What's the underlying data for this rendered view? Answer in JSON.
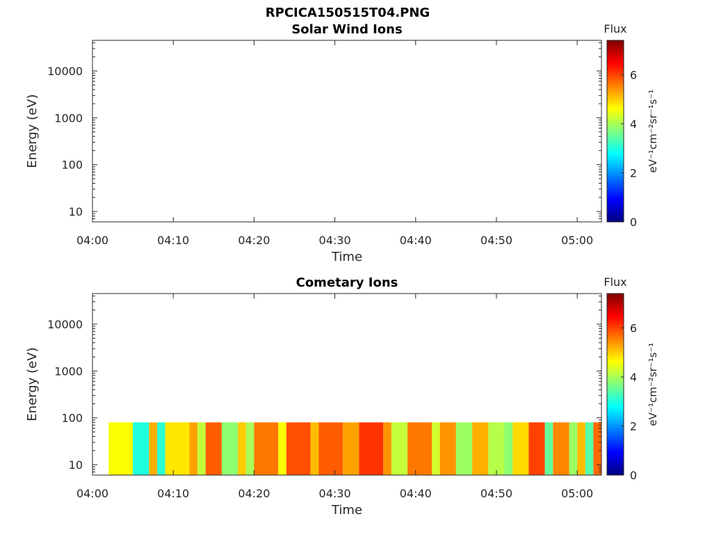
{
  "figure": {
    "title": "RPCICA150515T04.PNG"
  },
  "colormap": [
    "#00007f",
    "#0000ff",
    "#007fff",
    "#00ffff",
    "#7fff7f",
    "#ffff00",
    "#ff7f00",
    "#ff0000",
    "#7f0000"
  ],
  "chart_data": [
    {
      "type": "heatmap",
      "title": "Solar Wind Ions",
      "xlabel": "Time",
      "ylabel": "Energy (eV)",
      "x_range": [
        "04:00",
        "05:03"
      ],
      "x_ticks": [
        "04:00",
        "04:10",
        "04:20",
        "04:30",
        "04:40",
        "04:50",
        "05:00"
      ],
      "y_scale": "log",
      "y_range": [
        6,
        45000
      ],
      "y_ticks": [
        "10",
        "100",
        "1000",
        "10000"
      ],
      "colorbar": {
        "label": "Flux",
        "unit_text": "eV⁻¹cm⁻²sr⁻¹s⁻¹",
        "range": [
          0,
          7.4
        ],
        "ticks": [
          "0",
          "2",
          "4",
          "6"
        ]
      },
      "data_segments": []
    },
    {
      "type": "heatmap",
      "title": "Cometary Ions",
      "xlabel": "Time",
      "ylabel": "Energy (eV)",
      "x_range": [
        "04:00",
        "05:03"
      ],
      "x_ticks": [
        "04:00",
        "04:10",
        "04:20",
        "04:30",
        "04:40",
        "04:50",
        "05:00"
      ],
      "y_scale": "log",
      "y_range": [
        6,
        45000
      ],
      "y_ticks": [
        "10",
        "100",
        "1000",
        "10000"
      ],
      "colorbar": {
        "label": "Flux",
        "unit_text": "eV⁻¹cm⁻²sr⁻¹s⁻¹",
        "range": [
          0,
          7.4
        ],
        "ticks": [
          "0",
          "2",
          "4",
          "6"
        ]
      },
      "data_energy_range": [
        6,
        80
      ],
      "data_segments": [
        {
          "start": "04:02",
          "end": "04:05",
          "flux": 4.6
        },
        {
          "start": "04:05",
          "end": "04:07",
          "flux": 3.0
        },
        {
          "start": "04:07",
          "end": "04:08",
          "flux": 5.2
        },
        {
          "start": "04:08",
          "end": "04:09",
          "flux": 3.1
        },
        {
          "start": "04:09",
          "end": "04:12",
          "flux": 4.8
        },
        {
          "start": "04:12",
          "end": "04:13",
          "flux": 5.3
        },
        {
          "start": "04:13",
          "end": "04:14",
          "flux": 4.2
        },
        {
          "start": "04:14",
          "end": "04:16",
          "flux": 5.8
        },
        {
          "start": "04:16",
          "end": "04:18",
          "flux": 3.8
        },
        {
          "start": "04:18",
          "end": "04:19",
          "flux": 5.0
        },
        {
          "start": "04:19",
          "end": "04:20",
          "flux": 4.0
        },
        {
          "start": "04:20",
          "end": "04:23",
          "flux": 5.6
        },
        {
          "start": "04:23",
          "end": "04:24",
          "flux": 4.6
        },
        {
          "start": "04:24",
          "end": "04:27",
          "flux": 5.9
        },
        {
          "start": "04:27",
          "end": "04:28",
          "flux": 5.1
        },
        {
          "start": "04:28",
          "end": "04:31",
          "flux": 5.8
        },
        {
          "start": "04:31",
          "end": "04:33",
          "flux": 5.3
        },
        {
          "start": "04:33",
          "end": "04:36",
          "flux": 6.1
        },
        {
          "start": "04:36",
          "end": "04:37",
          "flux": 5.4
        },
        {
          "start": "04:37",
          "end": "04:39",
          "flux": 4.2
        },
        {
          "start": "04:39",
          "end": "04:42",
          "flux": 5.6
        },
        {
          "start": "04:42",
          "end": "04:43",
          "flux": 4.3
        },
        {
          "start": "04:43",
          "end": "04:45",
          "flux": 5.4
        },
        {
          "start": "04:45",
          "end": "04:47",
          "flux": 3.9
        },
        {
          "start": "04:47",
          "end": "04:49",
          "flux": 5.2
        },
        {
          "start": "04:49",
          "end": "04:51",
          "flux": 4.1
        },
        {
          "start": "04:51",
          "end": "04:52",
          "flux": 3.8
        },
        {
          "start": "04:52",
          "end": "04:54",
          "flux": 4.9
        },
        {
          "start": "04:54",
          "end": "04:56",
          "flux": 6.0
        },
        {
          "start": "04:56",
          "end": "04:57",
          "flux": 3.5
        },
        {
          "start": "04:57",
          "end": "04:59",
          "flux": 5.5
        },
        {
          "start": "04:59",
          "end": "05:00",
          "flux": 3.9
        },
        {
          "start": "05:00",
          "end": "05:01",
          "flux": 5.1
        },
        {
          "start": "05:01",
          "end": "05:02",
          "flux": 3.4
        },
        {
          "start": "05:02",
          "end": "05:03",
          "flux": 5.7
        }
      ]
    }
  ]
}
